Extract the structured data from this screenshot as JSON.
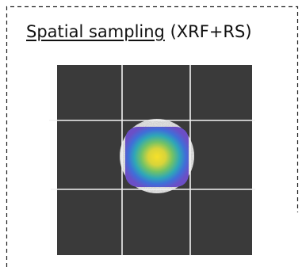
{
  "title": {
    "underlined": "Spatial sampling",
    "rest": "(XRF+RS)"
  }
}
